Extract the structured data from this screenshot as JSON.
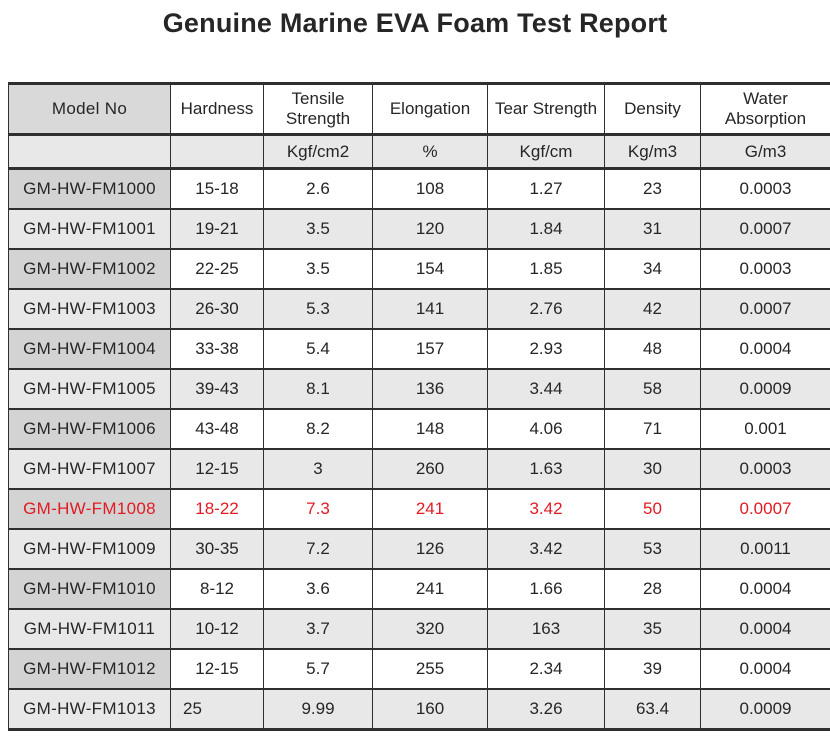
{
  "title": "Genuine Marine EVA Foam Test Report",
  "colors": {
    "highlight_red": "#e11b23",
    "border": "#2f2f2f",
    "gray_row_bg": "#e9e8e9",
    "model_cell_bg": "#d3d3d3",
    "model_header_bg": "#d9d9d9",
    "text": "#262626"
  },
  "table": {
    "columns": [
      {
        "label": "Model No",
        "unit": ""
      },
      {
        "label": "Hardness",
        "unit": ""
      },
      {
        "label": "Tensile Strength",
        "unit": "Kgf/cm2"
      },
      {
        "label": "Elongation",
        "unit": "%"
      },
      {
        "label": "Tear Strength",
        "unit": "Kgf/cm"
      },
      {
        "label": "Density",
        "unit": "Kg/m3"
      },
      {
        "label": "Water Absorption",
        "unit": "G/m3"
      }
    ],
    "rows": [
      {
        "model": "GM-HW-FM1000",
        "hardness": "15-18",
        "tensile": "2.6",
        "elongation": "108",
        "tear": "1.27",
        "density": "23",
        "water": "0.0003"
      },
      {
        "model": "GM-HW-FM1001",
        "hardness": "19-21",
        "tensile": "3.5",
        "elongation": "120",
        "tear": "1.84",
        "density": "31",
        "water": "0.0007"
      },
      {
        "model": "GM-HW-FM1002",
        "hardness": "22-25",
        "tensile": "3.5",
        "elongation": "154",
        "tear": "1.85",
        "density": "34",
        "water": "0.0003"
      },
      {
        "model": "GM-HW-FM1003",
        "hardness": "26-30",
        "tensile": "5.3",
        "elongation": "141",
        "tear": "2.76",
        "density": "42",
        "water": "0.0007"
      },
      {
        "model": "GM-HW-FM1004",
        "hardness": "33-38",
        "tensile": "5.4",
        "elongation": "157",
        "tear": "2.93",
        "density": "48",
        "water": "0.0004"
      },
      {
        "model": "GM-HW-FM1005",
        "hardness": "39-43",
        "tensile": "8.1",
        "elongation": "136",
        "tear": "3.44",
        "density": "58",
        "water": "0.0009"
      },
      {
        "model": "GM-HW-FM1006",
        "hardness": "43-48",
        "tensile": "8.2",
        "elongation": "148",
        "tear": "4.06",
        "density": "71",
        "water": "0.001"
      },
      {
        "model": "GM-HW-FM1007",
        "hardness": "12-15",
        "tensile": "3",
        "elongation": "260",
        "tear": "1.63",
        "density": "30",
        "water": "0.0003"
      },
      {
        "model": "GM-HW-FM1008",
        "hardness": "18-22",
        "tensile": "7.3",
        "elongation": "241",
        "tear": "3.42",
        "density": "50",
        "water": "0.0007",
        "highlighted": true
      },
      {
        "model": "GM-HW-FM1009",
        "hardness": "30-35",
        "tensile": "7.2",
        "elongation": "126",
        "tear": "3.42",
        "density": "53",
        "water": "0.0011"
      },
      {
        "model": "GM-HW-FM1010",
        "hardness": "8-12",
        "tensile": "3.6",
        "elongation": "241",
        "tear": "1.66",
        "density": "28",
        "water": "0.0004"
      },
      {
        "model": "GM-HW-FM1011",
        "hardness": "10-12",
        "tensile": "3.7",
        "elongation": "320",
        "tear": "163",
        "density": "35",
        "water": "0.0004"
      },
      {
        "model": "GM-HW-FM1012",
        "hardness": "12-15",
        "tensile": "5.7",
        "elongation": "255",
        "tear": "2.34",
        "density": "39",
        "water": "0.0004"
      },
      {
        "model": "GM-HW-FM1013",
        "hardness": "25",
        "tensile": "9.99",
        "elongation": "160",
        "tear": "3.26",
        "density": "63.4",
        "water": "0.0009",
        "hardness_left": true
      }
    ]
  }
}
